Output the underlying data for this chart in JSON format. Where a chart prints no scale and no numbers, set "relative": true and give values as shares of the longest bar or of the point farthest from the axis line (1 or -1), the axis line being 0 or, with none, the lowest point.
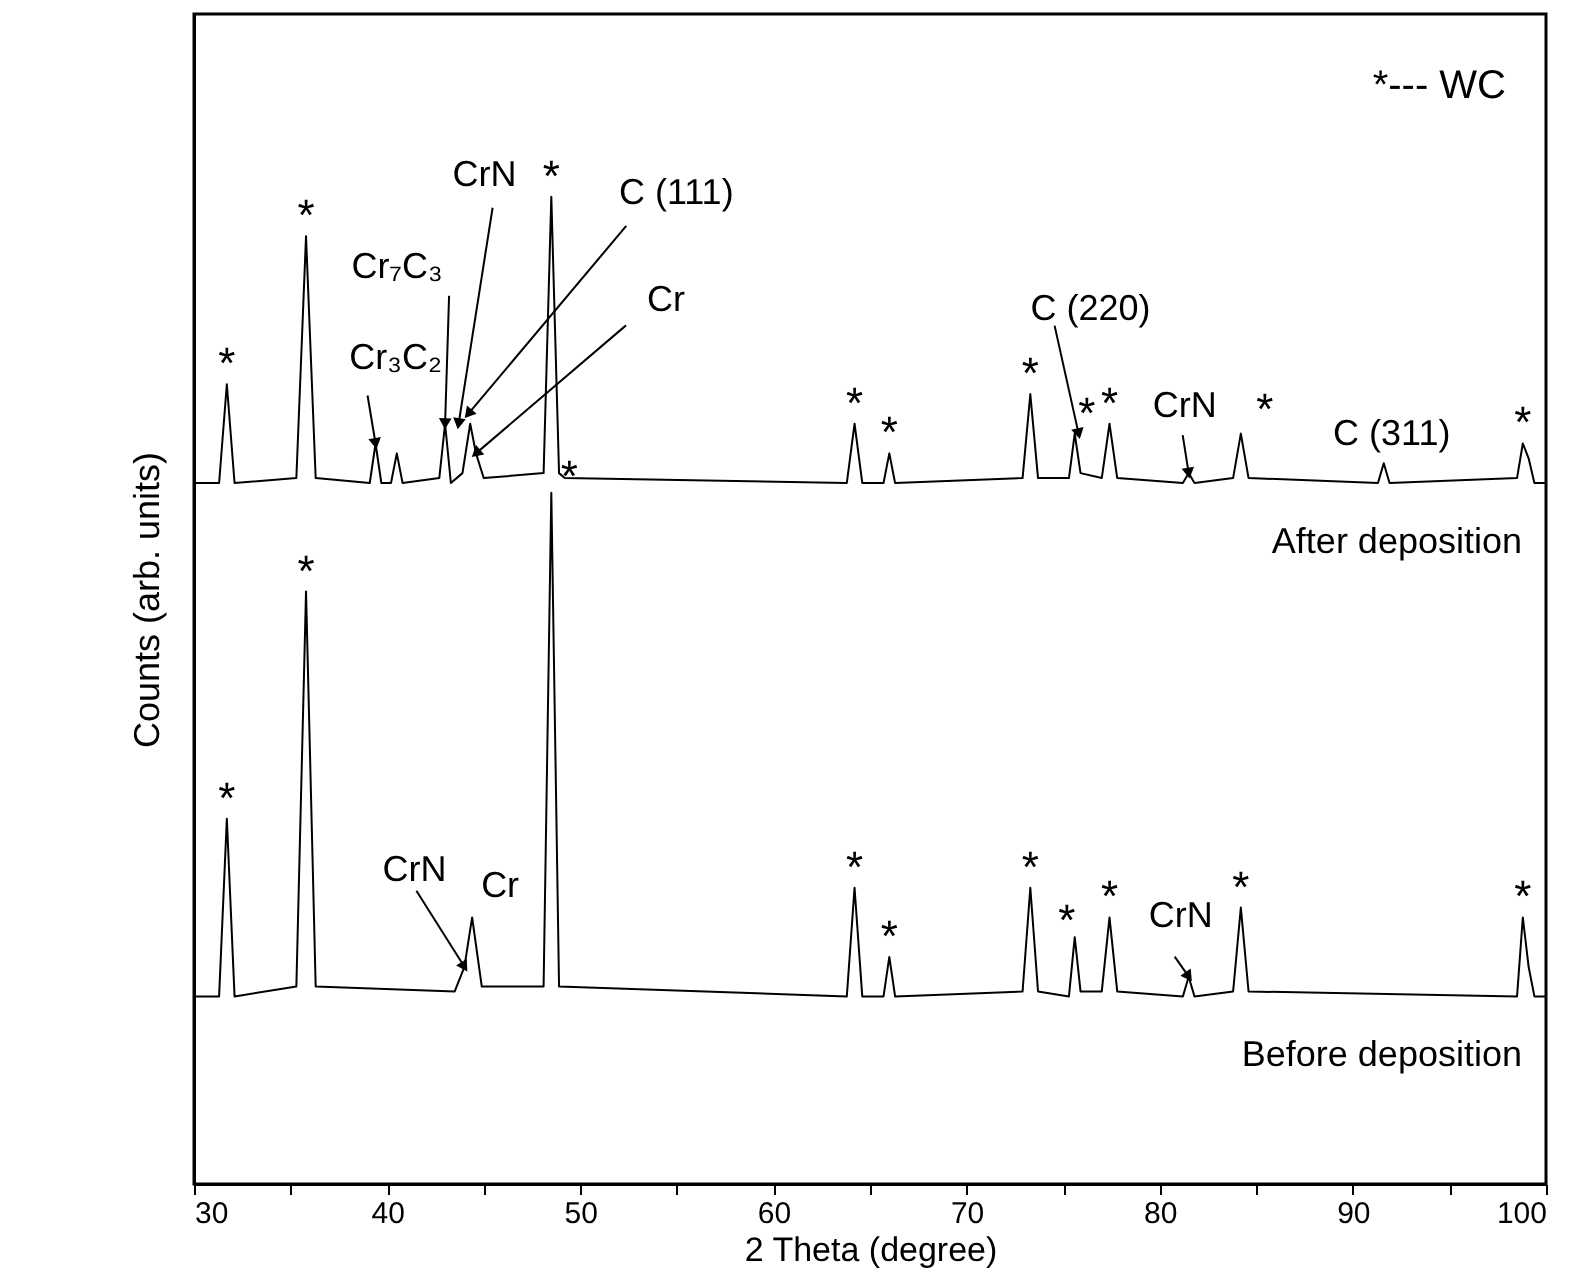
{
  "chart_data": {
    "type": "line",
    "relative": true,
    "xlabel": "2 Theta (degree)",
    "ylabel": "Counts (arb. units)",
    "xlim": [
      30,
      100
    ],
    "xticks": [
      30,
      {
        "value": 35,
        "label": null
      },
      40,
      {
        "value": 45,
        "label": null
      },
      50,
      {
        "value": 55,
        "label": null
      },
      60,
      {
        "value": 65,
        "label": null
      },
      70,
      {
        "value": 75,
        "label": null
      },
      80,
      {
        "value": 85,
        "label": null
      },
      90,
      {
        "value": 95,
        "label": null
      },
      100
    ],
    "grid": false,
    "tick_labels": "x",
    "series": [
      {
        "name": "After deposition",
        "color": "#000000",
        "x": [
          30,
          31.3,
          31.7,
          32.1,
          35.3,
          35.8,
          36.3,
          39.1,
          39.4,
          39.7,
          40.2,
          40.5,
          40.8,
          42.7,
          43.0,
          43.3,
          43.9,
          44.3,
          44.6,
          45.0,
          48.1,
          48.5,
          48.9,
          49.2,
          63.8,
          64.2,
          64.6,
          65.7,
          66.0,
          66.3,
          72.9,
          73.3,
          73.7,
          75.3,
          75.6,
          75.9,
          77.0,
          77.4,
          77.8,
          81.2,
          81.5,
          81.8,
          83.8,
          84.2,
          84.6,
          91.3,
          91.6,
          91.9,
          98.5,
          98.8,
          99.1,
          99.4,
          100
        ],
        "values": [
          0.71,
          0.71,
          0.81,
          0.71,
          0.715,
          0.96,
          0.715,
          0.71,
          0.75,
          0.71,
          0.71,
          0.74,
          0.71,
          0.715,
          0.77,
          0.71,
          0.72,
          0.77,
          0.74,
          0.715,
          0.72,
          1.0,
          0.72,
          0.715,
          0.71,
          0.77,
          0.71,
          0.71,
          0.74,
          0.71,
          0.715,
          0.8,
          0.715,
          0.715,
          0.76,
          0.72,
          0.715,
          0.77,
          0.715,
          0.71,
          0.72,
          0.71,
          0.715,
          0.76,
          0.715,
          0.71,
          0.73,
          0.71,
          0.715,
          0.75,
          0.735,
          0.71,
          0.71
        ]
      },
      {
        "name": "Before deposition",
        "color": "#000000",
        "x": [
          30,
          31.3,
          31.7,
          32.1,
          35.3,
          35.8,
          36.3,
          43.5,
          44.0,
          44.4,
          44.9,
          48.1,
          48.5,
          48.9,
          63.8,
          64.2,
          64.6,
          65.7,
          66.0,
          66.3,
          72.9,
          73.3,
          73.7,
          75.3,
          75.6,
          75.9,
          77.0,
          77.4,
          77.8,
          81.2,
          81.5,
          81.8,
          83.8,
          84.2,
          84.6,
          98.5,
          98.8,
          99.1,
          99.4,
          100
        ],
        "values": [
          0.19,
          0.19,
          0.37,
          0.19,
          0.2,
          0.6,
          0.2,
          0.195,
          0.22,
          0.27,
          0.2,
          0.2,
          0.7,
          0.2,
          0.19,
          0.3,
          0.19,
          0.19,
          0.23,
          0.19,
          0.195,
          0.3,
          0.195,
          0.19,
          0.25,
          0.195,
          0.195,
          0.27,
          0.195,
          0.19,
          0.21,
          0.19,
          0.195,
          0.28,
          0.195,
          0.19,
          0.27,
          0.22,
          0.19,
          0.19
        ]
      }
    ],
    "annotations": [
      {
        "text": "*",
        "x": 31.7,
        "y": 0.81
      },
      {
        "text": "*",
        "x": 35.8,
        "y": 0.96
      },
      {
        "text": "*",
        "x": 48.5,
        "y": 1.0
      },
      {
        "text": "*",
        "x": 64.2,
        "y": 0.77
      },
      {
        "text": "*",
        "x": 66.0,
        "y": 0.74
      },
      {
        "text": "*",
        "x": 73.3,
        "y": 0.8
      },
      {
        "text": "*",
        "x": 75.6,
        "y": 0.76
      },
      {
        "text": "*",
        "x": 77.4,
        "y": 0.77
      },
      {
        "text": "*",
        "x": 84.2,
        "y": 0.76
      },
      {
        "text": "*",
        "x": 98.8,
        "y": 0.75
      },
      {
        "text": "*",
        "x": 31.7,
        "y": 0.37
      },
      {
        "text": "*",
        "x": 35.8,
        "y": 0.6
      },
      {
        "text": "*",
        "x": 48.5,
        "y": 0.7
      },
      {
        "text": "*",
        "x": 64.2,
        "y": 0.3
      },
      {
        "text": "*",
        "x": 66.0,
        "y": 0.23
      },
      {
        "text": "*",
        "x": 73.3,
        "y": 0.3
      },
      {
        "text": "*",
        "x": 75.6,
        "y": 0.25
      },
      {
        "text": "*",
        "x": 77.4,
        "y": 0.27
      },
      {
        "text": "*",
        "x": 84.2,
        "y": 0.28
      },
      {
        "text": "*",
        "x": 98.8,
        "y": 0.27
      },
      {
        "text": "Cr₃C₂",
        "x": 39.4,
        "y": 0.75
      },
      {
        "text": "Cr₇C₃",
        "x": 43.0,
        "y": 0.77
      },
      {
        "text": "CrN",
        "x": 43.7,
        "y": 0.77
      },
      {
        "text": "C (111)",
        "x": 44.2,
        "y": 0.78
      },
      {
        "text": "Cr",
        "x": 44.6,
        "y": 0.74
      },
      {
        "text": "C (220)",
        "x": 75.8,
        "y": 0.76
      },
      {
        "text": "CrN",
        "x": 81.5,
        "y": 0.72
      },
      {
        "text": "C (311)",
        "x": 91.6,
        "y": 0.73
      },
      {
        "text": "CrN",
        "x": 44.0,
        "y": 0.22
      },
      {
        "text": "Cr",
        "x": 44.4,
        "y": 0.27
      },
      {
        "text": "CrN",
        "x": 81.5,
        "y": 0.21
      },
      "*--- WC"
    ]
  }
}
